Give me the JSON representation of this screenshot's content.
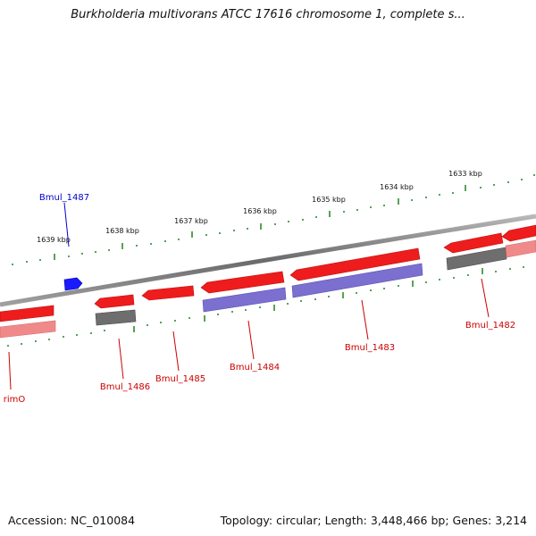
{
  "title": "Burkholderia multivorans ATCC 17616 chromosome 1, complete s...",
  "footer": {
    "accession": "Accession: NC_010084",
    "stats": "Topology: circular; Length: 3,448,466 bp; Genes: 3,214"
  },
  "colors": {
    "backbone": "#8a8a8a",
    "gene_red": "#ee1c1c",
    "gene_pink": "#f08a8a",
    "gene_gray": "#6e6e6e",
    "gene_purple": "#7b6fd0",
    "gene_blue": "#1a1aff",
    "tick": "#2e8b2e",
    "label_red": "#cc0000",
    "label_blue": "#0000cc"
  },
  "ruler_labels": [
    "1639 kbp",
    "1638 kbp",
    "1637 kbp",
    "1636 kbp",
    "1635 kbp",
    "1634 kbp",
    "1633 kbp"
  ],
  "gene_labels": [
    "Bmul_1487",
    "Bmul_1486",
    "Bmul_1485",
    "Bmul_1484",
    "Bmul_1483",
    "Bmul_1482",
    "rimO"
  ]
}
